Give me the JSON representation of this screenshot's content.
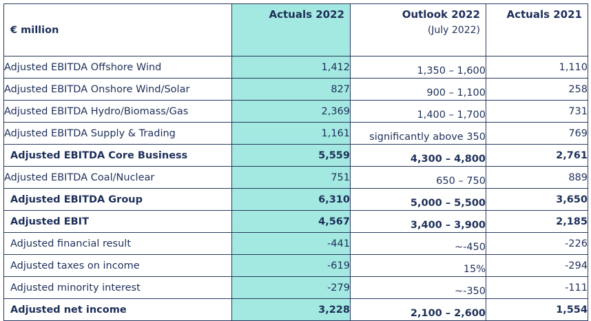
{
  "table": {
    "unit_label": "€ million",
    "columns": [
      {
        "title": "Actuals 2022",
        "subtitle": ""
      },
      {
        "title": "Outlook 2022",
        "subtitle": "(July 2022)"
      },
      {
        "title": "Actuals 2021",
        "subtitle": ""
      }
    ],
    "highlight_color": "#a3e9e1",
    "rows": [
      {
        "label": "Adjusted EBITDA Offshore Wind",
        "actuals_2022": "1,412",
        "outlook_2022": "1,350 – 1,600",
        "actuals_2021": "1,110",
        "bold": false
      },
      {
        "label": "Adjusted EBITDA Onshore Wind/Solar",
        "actuals_2022": "827",
        "outlook_2022": "900 – 1,100",
        "actuals_2021": "258",
        "bold": false
      },
      {
        "label": "Adjusted EBITDA Hydro/Biomass/Gas",
        "actuals_2022": "2,369",
        "outlook_2022": "1,400 – 1,700",
        "actuals_2021": "731",
        "bold": false
      },
      {
        "label": "Adjusted EBITDA Supply & Trading",
        "actuals_2022": "1,161",
        "outlook_2022": "significantly above 350",
        "actuals_2021": "769",
        "bold": false
      },
      {
        "label": "Adjusted EBITDA Core Business",
        "actuals_2022": "5,559",
        "outlook_2022": "4,300 – 4,800",
        "actuals_2021": "2,761",
        "bold": true
      },
      {
        "label": "Adjusted EBITDA Coal/Nuclear",
        "actuals_2022": "751",
        "outlook_2022": "650 – 750",
        "actuals_2021": "889",
        "bold": false
      },
      {
        "label": "Adjusted EBITDA Group",
        "actuals_2022": "6,310",
        "outlook_2022": "5,000 – 5,500",
        "actuals_2021": "3,650",
        "bold": true
      },
      {
        "label": "Adjusted EBIT",
        "actuals_2022": "4,567",
        "outlook_2022": "3,400 – 3,900",
        "actuals_2021": "2,185",
        "bold": true
      },
      {
        "label": "Adjusted financial result",
        "actuals_2022": "-441",
        "outlook_2022": "~-450",
        "actuals_2021": "-226",
        "bold": false
      },
      {
        "label": "Adjusted taxes on income",
        "actuals_2022": "-619",
        "outlook_2022": "15%",
        "actuals_2021": "-294",
        "bold": false
      },
      {
        "label": "Adjusted minority interest",
        "actuals_2022": "-279",
        "outlook_2022": "~-350",
        "actuals_2021": "-111",
        "bold": false
      },
      {
        "label": "Adjusted net income",
        "actuals_2022": "3,228",
        "outlook_2022": "2,100 – 2,600",
        "actuals_2021": "1,554",
        "bold": true
      }
    ]
  }
}
